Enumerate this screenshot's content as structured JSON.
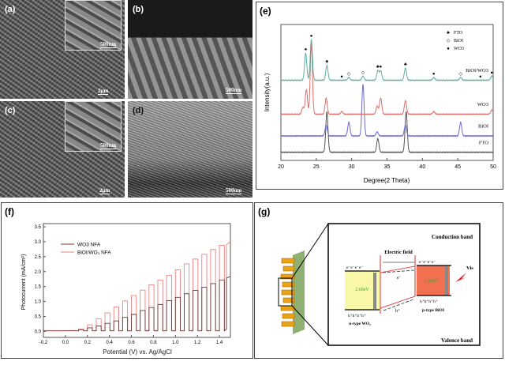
{
  "sem": {
    "a": {
      "label": "(a)",
      "inset_scale": "500nm",
      "scale": "2μm"
    },
    "b": {
      "label": "(b)",
      "scale": "500nm"
    },
    "c": {
      "label": "(c)",
      "inset_scale": "500nm",
      "scale": "2μm"
    },
    "d": {
      "label": "(d)",
      "scale": "500nm"
    }
  },
  "chart_data": [
    {
      "panel_label": "(e)",
      "type": "line",
      "title": "",
      "xlabel": "Degree(2 Theta)",
      "ylabel": "Intensity(a.u.)",
      "xlim": [
        20,
        50
      ],
      "ylim": [
        0,
        100
      ],
      "xticks": [
        20,
        25,
        30,
        35,
        40,
        45,
        50
      ],
      "xtick_labels": [
        "20",
        "25",
        "30",
        "35",
        "40",
        "45",
        "50"
      ],
      "legend": {
        "placement": "top-right",
        "entries": [
          {
            "symbol": "club",
            "label": "FTO"
          },
          {
            "symbol": "open-diamond",
            "label": "BiOI"
          },
          {
            "symbol": "filled-circle",
            "label": "WO3"
          }
        ]
      },
      "series": [
        {
          "name": "FTO",
          "color": "#555555",
          "offset": 6,
          "peaks": [
            [
              26.5,
              30
            ],
            [
              33.7,
              10
            ],
            [
              37.7,
              30
            ]
          ]
        },
        {
          "name": "BiOI",
          "color": "#6a6ad0",
          "offset": 18,
          "peaks": [
            [
              26.4,
              8
            ],
            [
              29.6,
              10
            ],
            [
              31.6,
              38
            ],
            [
              33.6,
              3
            ],
            [
              37.6,
              8
            ],
            [
              45.4,
              10
            ]
          ]
        },
        {
          "name": "WO3",
          "color": "#d9706c",
          "offset": 34,
          "peaks": [
            [
              23.1,
              5
            ],
            [
              23.6,
              18
            ],
            [
              24.3,
              52
            ],
            [
              26.4,
              12
            ],
            [
              28.6,
              2
            ],
            [
              33.6,
              6
            ],
            [
              34.1,
              12
            ],
            [
              37.6,
              10
            ],
            [
              41.6,
              2
            ],
            [
              49.8,
              3
            ]
          ]
        },
        {
          "name": "BiOI/WO3",
          "color": "#5fb0a0",
          "offset": 59,
          "peaks": [
            [
              23.5,
              20
            ],
            [
              24.3,
              30
            ],
            [
              26.5,
              11
            ],
            [
              29.6,
              2
            ],
            [
              31.6,
              3
            ],
            [
              33.7,
              7
            ],
            [
              34.1,
              7
            ],
            [
              37.6,
              9
            ],
            [
              41.6,
              2
            ],
            [
              45.4,
              2
            ],
            [
              49.8,
              3
            ]
          ]
        }
      ],
      "markers": [
        [
          23.5,
          "WO3"
        ],
        [
          24.3,
          "WO3"
        ],
        [
          26.5,
          "FTO"
        ],
        [
          28.6,
          "WO3"
        ],
        [
          29.6,
          "BiOI"
        ],
        [
          31.6,
          "BiOI"
        ],
        [
          33.7,
          "FTO"
        ],
        [
          34.1,
          "WO3"
        ],
        [
          37.6,
          "FTO"
        ],
        [
          41.6,
          "WO3"
        ],
        [
          45.4,
          "BiOI"
        ],
        [
          48.2,
          "WO3"
        ],
        [
          49.8,
          "WO3"
        ]
      ]
    },
    {
      "panel_label": "(f)",
      "type": "line",
      "title": "",
      "xlabel": "Potential (V) vs. Ag/AgCl",
      "ylabel": "Photocurrent (mA/cm²)",
      "xlim": [
        -0.2,
        1.5
      ],
      "ylim": [
        -0.2,
        3.5
      ],
      "xticks": [
        -0.2,
        0.0,
        0.2,
        0.4,
        0.6,
        0.8,
        1.0,
        1.2,
        1.4
      ],
      "xtick_labels": [
        "-0.2",
        "0.0",
        "0.2",
        "0.4",
        "0.6",
        "0.8",
        "1.0",
        "1.2",
        "1.4"
      ],
      "yticks": [
        0,
        0.5,
        1,
        1.5,
        2,
        2.5,
        3,
        3.5
      ],
      "ytick_labels": [
        "0.0",
        "0.5",
        "1.0",
        "1.5",
        "2.0",
        "2.5",
        "3.0",
        "3.5"
      ],
      "legend": {
        "placement": "top-left",
        "entries": [
          {
            "label": "WO3 NFA",
            "color": "#6b3a3a"
          },
          {
            "label": "BiOI/WO₃ NFA",
            "color": "#f08080"
          }
        ]
      },
      "light_on_potentials": [
        0.04,
        0.12,
        0.2,
        0.28,
        0.36,
        0.44,
        0.52,
        0.6,
        0.68,
        0.76,
        0.84,
        0.92,
        1.0,
        1.08,
        1.16,
        1.24,
        1.32,
        1.4
      ],
      "pulse_width_V": 0.045,
      "series": [
        {
          "name": "WO3 NFA",
          "color": "#6b3a3a",
          "on_current": [
            0.02,
            0.06,
            0.12,
            0.18,
            0.27,
            0.35,
            0.47,
            0.57,
            0.7,
            0.8,
            0.9,
            1.03,
            1.14,
            1.26,
            1.37,
            1.48,
            1.6,
            1.72
          ]
        },
        {
          "name": "BiOI/WO₃ NFA",
          "color": "#f08080",
          "on_current": [
            0.03,
            0.08,
            0.22,
            0.42,
            0.62,
            0.82,
            1.02,
            1.2,
            1.38,
            1.56,
            1.72,
            1.88,
            2.06,
            2.26,
            2.42,
            2.58,
            2.74,
            2.88
          ]
        }
      ],
      "end_current": {
        "WO3 NFA": 1.84,
        "BiOI/WO₃ NFA": 3.0
      }
    }
  ],
  "scheme": {
    "label": "(g)",
    "conduction_band": "Conduction band",
    "valence_band": "Valence band",
    "electric_field": "Electric field",
    "electrons_left": "e⁻e⁻e⁻e⁻",
    "electrons_right": "e⁻e⁻e⁻e⁻",
    "holes_left": "h⁺h⁺h⁺h⁺",
    "holes_right": "h⁺h⁺h⁺h⁺",
    "gap_wo3": "2.60eV",
    "gap_bioi": "1.86eV",
    "wo3_label": "n-type WO₃",
    "bioi_label": "p-type BiOI",
    "electron": "e⁻",
    "hole": "h⁺",
    "light": "Vis"
  }
}
